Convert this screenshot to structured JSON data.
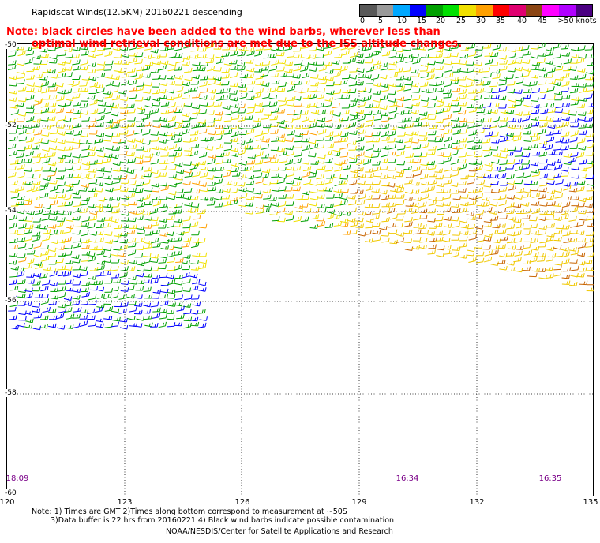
{
  "title": "Rapidscat Winds(12.5KM) 20160221 descending",
  "note_line1": "Note: black circles have been added to the wind barbs, wherever less than",
  "note_line2": "optimal wind retrieval conditions are met due to the ISS altitude changes.",
  "legend": {
    "labels": [
      "0",
      "5",
      "10",
      "15",
      "20",
      "25",
      "30",
      "35",
      "40",
      "45",
      ">50 knots"
    ],
    "colors": [
      "#585858",
      "#9a9a9a",
      "#00a8ff",
      "#0000ff",
      "#00a000",
      "#00e000",
      "#f0e000",
      "#ffa000",
      "#ff0000",
      "#e00070",
      "#8b4513",
      "#ff00ff",
      "#b000ff",
      "#4b0082"
    ]
  },
  "lat_labels": [
    "-50",
    "-52",
    "-54",
    "-56",
    "-58",
    "-60"
  ],
  "lon_labels": [
    "120",
    "123",
    "126",
    "129",
    "132",
    "135"
  ],
  "times": [
    "18:09",
    "16:34",
    "16:35"
  ],
  "footnote_line1": "Note: 1) Times are GMT 2)Times along bottom correspond to measurement at ~50S",
  "footnote_line2": "3)Data buffer is 22 hrs from 20160221 4) Black wind barbs indicate possible contamination",
  "credit": "NOAA/NESDIS/Center for Satellite Applications and Research"
}
